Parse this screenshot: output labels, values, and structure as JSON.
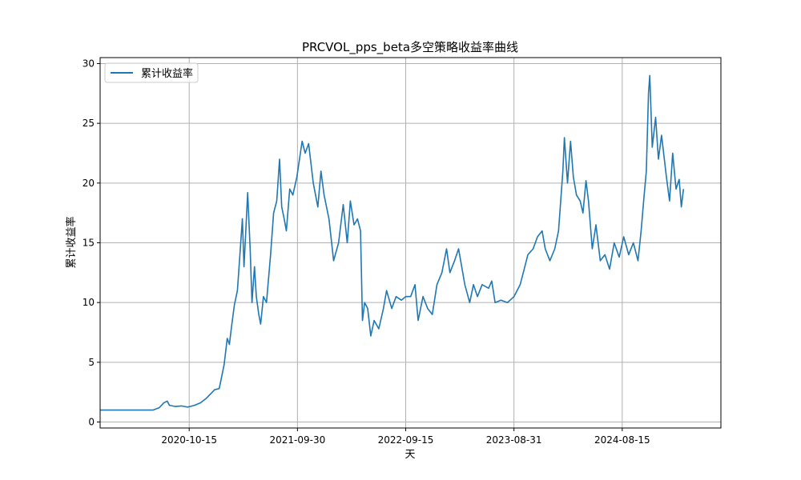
{
  "chart_data": {
    "type": "line",
    "title": "PRCVOL_pps_beta多空策略收益率曲线",
    "xlabel": "天",
    "ylabel": "累计收益率",
    "grid": true,
    "legend_position": "top-left",
    "x_is_date": true,
    "xlim": [
      "2020-01-01",
      "2025-06-30"
    ],
    "ylim": [
      -0.5,
      30.5
    ],
    "x_ticks": [
      "2020-10-15",
      "2021-09-30",
      "2022-09-15",
      "2023-08-31",
      "2024-08-15"
    ],
    "y_ticks": [
      0,
      5,
      10,
      15,
      20,
      25,
      30
    ],
    "series": [
      {
        "name": "累计收益率",
        "color": "#1f77b4",
        "points": [
          [
            "2020-01-02",
            1.0
          ],
          [
            "2020-03-01",
            1.0
          ],
          [
            "2020-05-01",
            1.0
          ],
          [
            "2020-06-20",
            1.0
          ],
          [
            "2020-07-10",
            1.2
          ],
          [
            "2020-07-25",
            1.6
          ],
          [
            "2020-08-05",
            1.75
          ],
          [
            "2020-08-12",
            1.4
          ],
          [
            "2020-09-01",
            1.3
          ],
          [
            "2020-09-20",
            1.35
          ],
          [
            "2020-10-10",
            1.25
          ],
          [
            "2020-11-01",
            1.4
          ],
          [
            "2020-11-20",
            1.6
          ],
          [
            "2020-12-10",
            2.0
          ],
          [
            "2021-01-05",
            2.7
          ],
          [
            "2021-01-20",
            2.8
          ],
          [
            "2021-02-05",
            4.8
          ],
          [
            "2021-02-15",
            7.0
          ],
          [
            "2021-02-22",
            6.5
          ],
          [
            "2021-03-01",
            8.0
          ],
          [
            "2021-03-10",
            9.8
          ],
          [
            "2021-03-20",
            11.0
          ],
          [
            "2021-03-28",
            14.0
          ],
          [
            "2021-04-05",
            17.0
          ],
          [
            "2021-04-10",
            13.0
          ],
          [
            "2021-04-15",
            15.5
          ],
          [
            "2021-04-22",
            19.2
          ],
          [
            "2021-04-30",
            14.5
          ],
          [
            "2021-05-06",
            10.0
          ],
          [
            "2021-05-14",
            13.0
          ],
          [
            "2021-05-20",
            10.5
          ],
          [
            "2021-05-28",
            9.0
          ],
          [
            "2021-06-03",
            8.2
          ],
          [
            "2021-06-12",
            10.5
          ],
          [
            "2021-06-22",
            10.0
          ],
          [
            "2021-07-05",
            14.0
          ],
          [
            "2021-07-15",
            17.5
          ],
          [
            "2021-07-25",
            18.5
          ],
          [
            "2021-08-03",
            22.0
          ],
          [
            "2021-08-10",
            18.0
          ],
          [
            "2021-08-18",
            17.0
          ],
          [
            "2021-08-25",
            16.0
          ],
          [
            "2021-09-05",
            19.5
          ],
          [
            "2021-09-15",
            19.0
          ],
          [
            "2021-09-28",
            20.5
          ],
          [
            "2021-10-15",
            23.5
          ],
          [
            "2021-10-25",
            22.5
          ],
          [
            "2021-11-05",
            23.3
          ],
          [
            "2021-11-20",
            20.0
          ],
          [
            "2021-12-05",
            18.0
          ],
          [
            "2021-12-15",
            21.0
          ],
          [
            "2021-12-25",
            19.0
          ],
          [
            "2022-01-10",
            17.0
          ],
          [
            "2022-01-25",
            13.5
          ],
          [
            "2022-02-10",
            15.0
          ],
          [
            "2022-02-25",
            18.2
          ],
          [
            "2022-03-10",
            15.0
          ],
          [
            "2022-03-20",
            18.5
          ],
          [
            "2022-04-01",
            16.5
          ],
          [
            "2022-04-12",
            17.0
          ],
          [
            "2022-04-22",
            16.0
          ],
          [
            "2022-04-28",
            8.5
          ],
          [
            "2022-05-05",
            10.0
          ],
          [
            "2022-05-15",
            9.5
          ],
          [
            "2022-05-25",
            7.2
          ],
          [
            "2022-06-05",
            8.5
          ],
          [
            "2022-06-20",
            7.8
          ],
          [
            "2022-07-05",
            9.5
          ],
          [
            "2022-07-15",
            11.0
          ],
          [
            "2022-08-01",
            9.5
          ],
          [
            "2022-08-15",
            10.5
          ],
          [
            "2022-09-01",
            10.2
          ],
          [
            "2022-09-15",
            10.5
          ],
          [
            "2022-10-01",
            10.5
          ],
          [
            "2022-10-15",
            11.5
          ],
          [
            "2022-10-25",
            8.5
          ],
          [
            "2022-11-10",
            10.5
          ],
          [
            "2022-11-25",
            9.5
          ],
          [
            "2022-12-10",
            9.0
          ],
          [
            "2022-12-25",
            11.5
          ],
          [
            "2023-01-10",
            12.5
          ],
          [
            "2023-01-25",
            14.5
          ],
          [
            "2023-02-05",
            12.5
          ],
          [
            "2023-02-20",
            13.5
          ],
          [
            "2023-03-05",
            14.5
          ],
          [
            "2023-03-15",
            13.0
          ],
          [
            "2023-03-25",
            11.5
          ],
          [
            "2023-04-10",
            10.0
          ],
          [
            "2023-04-22",
            11.5
          ],
          [
            "2023-05-05",
            10.5
          ],
          [
            "2023-05-20",
            11.5
          ],
          [
            "2023-06-10",
            11.2
          ],
          [
            "2023-06-20",
            11.8
          ],
          [
            "2023-07-01",
            10.0
          ],
          [
            "2023-07-20",
            10.2
          ],
          [
            "2023-08-10",
            10.0
          ],
          [
            "2023-08-31",
            10.5
          ],
          [
            "2023-09-20",
            11.5
          ],
          [
            "2023-10-05",
            13.0
          ],
          [
            "2023-10-15",
            14.0
          ],
          [
            "2023-11-01",
            14.5
          ],
          [
            "2023-11-15",
            15.5
          ],
          [
            "2023-11-30",
            16.0
          ],
          [
            "2023-12-10",
            14.5
          ],
          [
            "2023-12-25",
            13.5
          ],
          [
            "2024-01-10",
            14.5
          ],
          [
            "2024-01-22",
            16.0
          ],
          [
            "2024-02-05",
            21.0
          ],
          [
            "2024-02-10",
            23.8
          ],
          [
            "2024-02-20",
            20.0
          ],
          [
            "2024-03-01",
            23.5
          ],
          [
            "2024-03-10",
            20.5
          ],
          [
            "2024-03-20",
            19.0
          ],
          [
            "2024-04-01",
            18.5
          ],
          [
            "2024-04-10",
            17.5
          ],
          [
            "2024-04-20",
            20.2
          ],
          [
            "2024-04-28",
            18.5
          ],
          [
            "2024-05-10",
            14.5
          ],
          [
            "2024-05-22",
            16.5
          ],
          [
            "2024-06-05",
            13.5
          ],
          [
            "2024-06-20",
            14.0
          ],
          [
            "2024-07-05",
            12.8
          ],
          [
            "2024-07-20",
            15.0
          ],
          [
            "2024-08-05",
            13.8
          ],
          [
            "2024-08-20",
            15.5
          ],
          [
            "2024-09-05",
            14.0
          ],
          [
            "2024-09-20",
            15.0
          ],
          [
            "2024-10-05",
            13.5
          ],
          [
            "2024-10-15",
            16.0
          ],
          [
            "2024-10-25",
            19.0
          ],
          [
            "2024-11-01",
            21.0
          ],
          [
            "2024-11-08",
            27.5
          ],
          [
            "2024-11-12",
            29.0
          ],
          [
            "2024-11-20",
            23.0
          ],
          [
            "2024-12-01",
            25.5
          ],
          [
            "2024-12-10",
            22.0
          ],
          [
            "2024-12-20",
            24.0
          ],
          [
            "2025-01-05",
            20.5
          ],
          [
            "2025-01-15",
            18.5
          ],
          [
            "2025-01-25",
            22.5
          ],
          [
            "2025-02-05",
            19.5
          ],
          [
            "2025-02-15",
            20.3
          ],
          [
            "2025-02-22",
            18.0
          ],
          [
            "2025-03-01",
            19.5
          ]
        ]
      }
    ]
  }
}
